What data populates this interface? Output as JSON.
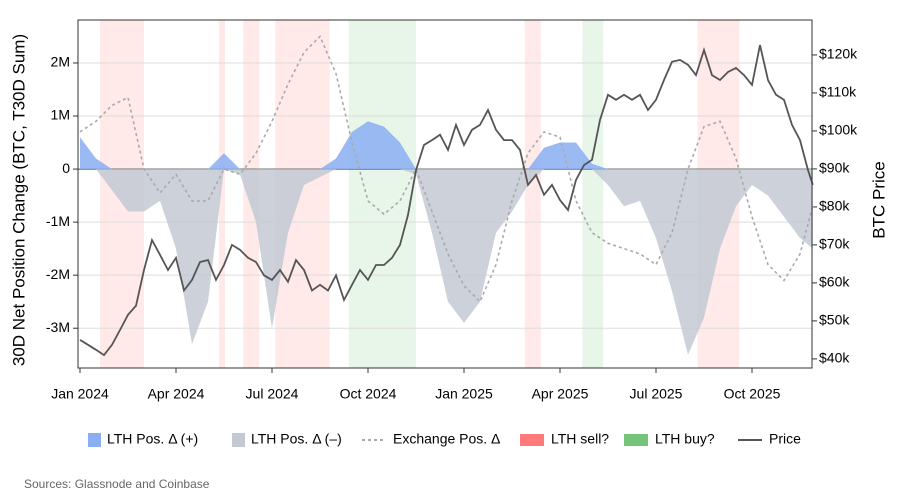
{
  "chart_data": {
    "type": "area-line",
    "y_label": "30D Net Position Change (BTC, T30D Sum)",
    "y2_label": "BTC Price",
    "source": "Sources: Glassnode and Coinbase",
    "xlim": [
      -0.0625,
      22.875
    ],
    "xticks": [
      {
        "value": 0,
        "label": "Jan 2024"
      },
      {
        "value": 3,
        "label": "Apr 2024"
      },
      {
        "value": 6,
        "label": "Jul 2024"
      },
      {
        "value": 9,
        "label": "Oct 2024"
      },
      {
        "value": 12,
        "label": "Jan 2025"
      },
      {
        "value": 15,
        "label": "Apr 2025"
      },
      {
        "value": 18,
        "label": "Jul 2025"
      },
      {
        "value": 21,
        "label": "Oct 2025"
      }
    ],
    "ylim": [
      -3750000,
      2810000
    ],
    "yticks": [
      {
        "value": -3000000,
        "label": "-3M"
      },
      {
        "value": -2000000,
        "label": "-2M"
      },
      {
        "value": -1000000,
        "label": "-1M"
      },
      0,
      {
        "value": 1000000,
        "label": "1M"
      },
      {
        "value": 2000000,
        "label": "2M"
      }
    ],
    "y2lim": [
      37600,
      129200
    ],
    "y2ticks": [
      {
        "value": 40000,
        "label": "$40k"
      },
      {
        "value": 50000,
        "label": "$50k"
      },
      {
        "value": 60000,
        "label": "$60k"
      },
      {
        "value": 70000,
        "label": "$70k"
      },
      {
        "value": 80000,
        "label": "$80k"
      },
      {
        "value": 90000,
        "label": "$90k"
      },
      {
        "value": 100000,
        "label": "$100k"
      },
      {
        "value": 110000,
        "label": "$110k"
      },
      {
        "value": 120000,
        "label": "$120k"
      }
    ],
    "grid": true,
    "x": [
      0,
      0.5,
      1,
      1.5,
      2,
      2.5,
      3,
      3.5,
      4,
      4.5,
      5,
      5.5,
      6,
      6.5,
      7,
      7.5,
      8,
      8.5,
      9,
      9.5,
      10,
      10.5,
      11,
      11.5,
      12,
      12.5,
      13,
      13.5,
      14,
      14.5,
      15,
      15.5,
      16,
      16.5,
      17,
      17.5,
      18,
      18.5,
      19,
      19.5,
      20,
      20.5,
      21,
      21.5,
      22,
      22.5,
      22.9
    ],
    "series": [
      {
        "name": "LTH Pos. Δ (+)",
        "style": "area",
        "color": "#8aaef2",
        "values": [
          600000,
          200000,
          0,
          0,
          0,
          0,
          0,
          0,
          0,
          300000,
          0,
          0,
          0,
          0,
          0,
          0,
          200000,
          700000,
          900000,
          800000,
          500000,
          0,
          0,
          0,
          0,
          0,
          0,
          0,
          0,
          400000,
          500000,
          500000,
          100000,
          0,
          0,
          0,
          0,
          0,
          0,
          0,
          0,
          0,
          0,
          0,
          0,
          0,
          0
        ]
      },
      {
        "name": "LTH Pos. Δ (–)",
        "style": "area",
        "color": "#c3c9d3",
        "values": [
          0,
          0,
          -400000,
          -800000,
          -800000,
          -600000,
          -1500000,
          -3300000,
          -2500000,
          0,
          -100000,
          -1000000,
          -3000000,
          -1200000,
          -300000,
          -150000,
          0,
          0,
          0,
          0,
          0,
          -100000,
          -1200000,
          -2500000,
          -2900000,
          -2500000,
          -1200000,
          -800000,
          -300000,
          0,
          0,
          0,
          0,
          -300000,
          -700000,
          -600000,
          -1300000,
          -2300000,
          -3500000,
          -2800000,
          -1500000,
          -700000,
          -300000,
          -500000,
          -900000,
          -1300000,
          -1500000
        ]
      },
      {
        "name": "Exchange Pos. Δ",
        "style": "dotted",
        "color": "#aaaaaa",
        "values": [
          700000,
          900000,
          1200000,
          1350000,
          0,
          -450000,
          -100000,
          -600000,
          -600000,
          0,
          -100000,
          300000,
          900000,
          1600000,
          2200000,
          2500000,
          1800000,
          500000,
          -600000,
          -850000,
          -600000,
          0,
          -800000,
          -1600000,
          -2200000,
          -2500000,
          -1800000,
          -600000,
          300000,
          700000,
          600000,
          -600000,
          -1200000,
          -1400000,
          -1500000,
          -1600000,
          -1800000,
          -1200000,
          0,
          800000,
          900000,
          200000,
          -900000,
          -1800000,
          -2100000,
          -1600000,
          -700000
        ]
      },
      {
        "name": "Price",
        "style": "line",
        "color": "#555555",
        "axis": "y2",
        "x": [
          0,
          0.25,
          0.5,
          0.75,
          1,
          1.25,
          1.5,
          1.75,
          2,
          2.25,
          2.5,
          2.75,
          3,
          3.25,
          3.5,
          3.75,
          4,
          4.25,
          4.5,
          4.75,
          5,
          5.25,
          5.5,
          5.75,
          6,
          6.25,
          6.5,
          6.75,
          7,
          7.25,
          7.5,
          7.75,
          8,
          8.25,
          8.5,
          8.75,
          9,
          9.25,
          9.5,
          9.75,
          10,
          10.25,
          10.5,
          10.75,
          11,
          11.25,
          11.5,
          11.75,
          12,
          12.25,
          12.5,
          12.75,
          13,
          13.25,
          13.5,
          13.75,
          14,
          14.25,
          14.5,
          14.75,
          15,
          15.25,
          15.5,
          15.75,
          16,
          16.25,
          16.5,
          16.75,
          17,
          17.25,
          17.5,
          17.75,
          18,
          18.25,
          18.5,
          18.75,
          19,
          19.25,
          19.5,
          19.75,
          20,
          20.25,
          20.5,
          20.75,
          21,
          21.25,
          21.5,
          21.75,
          22,
          22.25,
          22.5,
          22.75,
          22.9
        ],
        "values": [
          45000,
          43700,
          42400,
          41000,
          43700,
          47600,
          51600,
          54000,
          63400,
          71300,
          67400,
          63400,
          66600,
          58000,
          60800,
          65500,
          66000,
          60800,
          64700,
          70000,
          68700,
          66600,
          65500,
          62000,
          60800,
          63400,
          60300,
          66000,
          63400,
          58000,
          59500,
          58000,
          62000,
          55500,
          59500,
          63400,
          60800,
          64700,
          64700,
          66600,
          70000,
          77900,
          89700,
          96300,
          97600,
          99000,
          95000,
          101600,
          96300,
          100300,
          101600,
          105500,
          100300,
          97600,
          97600,
          95000,
          85800,
          88400,
          83200,
          85800,
          81800,
          79200,
          87100,
          91000,
          92400,
          102900,
          109500,
          108200,
          109500,
          108200,
          109500,
          105500,
          108200,
          113400,
          118200,
          118700,
          117400,
          114700,
          121300,
          114700,
          113400,
          115500,
          116600,
          114700,
          112100,
          122600,
          113400,
          109500,
          108200,
          101600,
          97600,
          89700,
          85800
        ]
      }
    ],
    "regions": [
      {
        "name": "LTH sell?",
        "color": "#ff6b6b",
        "spans": [
          [
            0.625,
            2.0
          ],
          [
            4.34,
            4.53
          ],
          [
            5.1,
            5.6
          ],
          [
            6.1,
            7.8
          ],
          [
            13.9,
            14.4
          ],
          [
            19.3,
            20.6
          ]
        ]
      },
      {
        "name": "LTH buy?",
        "color": "#66bb6a",
        "spans": [
          [
            8.4,
            10.5
          ],
          [
            15.7,
            16.35
          ]
        ]
      }
    ]
  }
}
